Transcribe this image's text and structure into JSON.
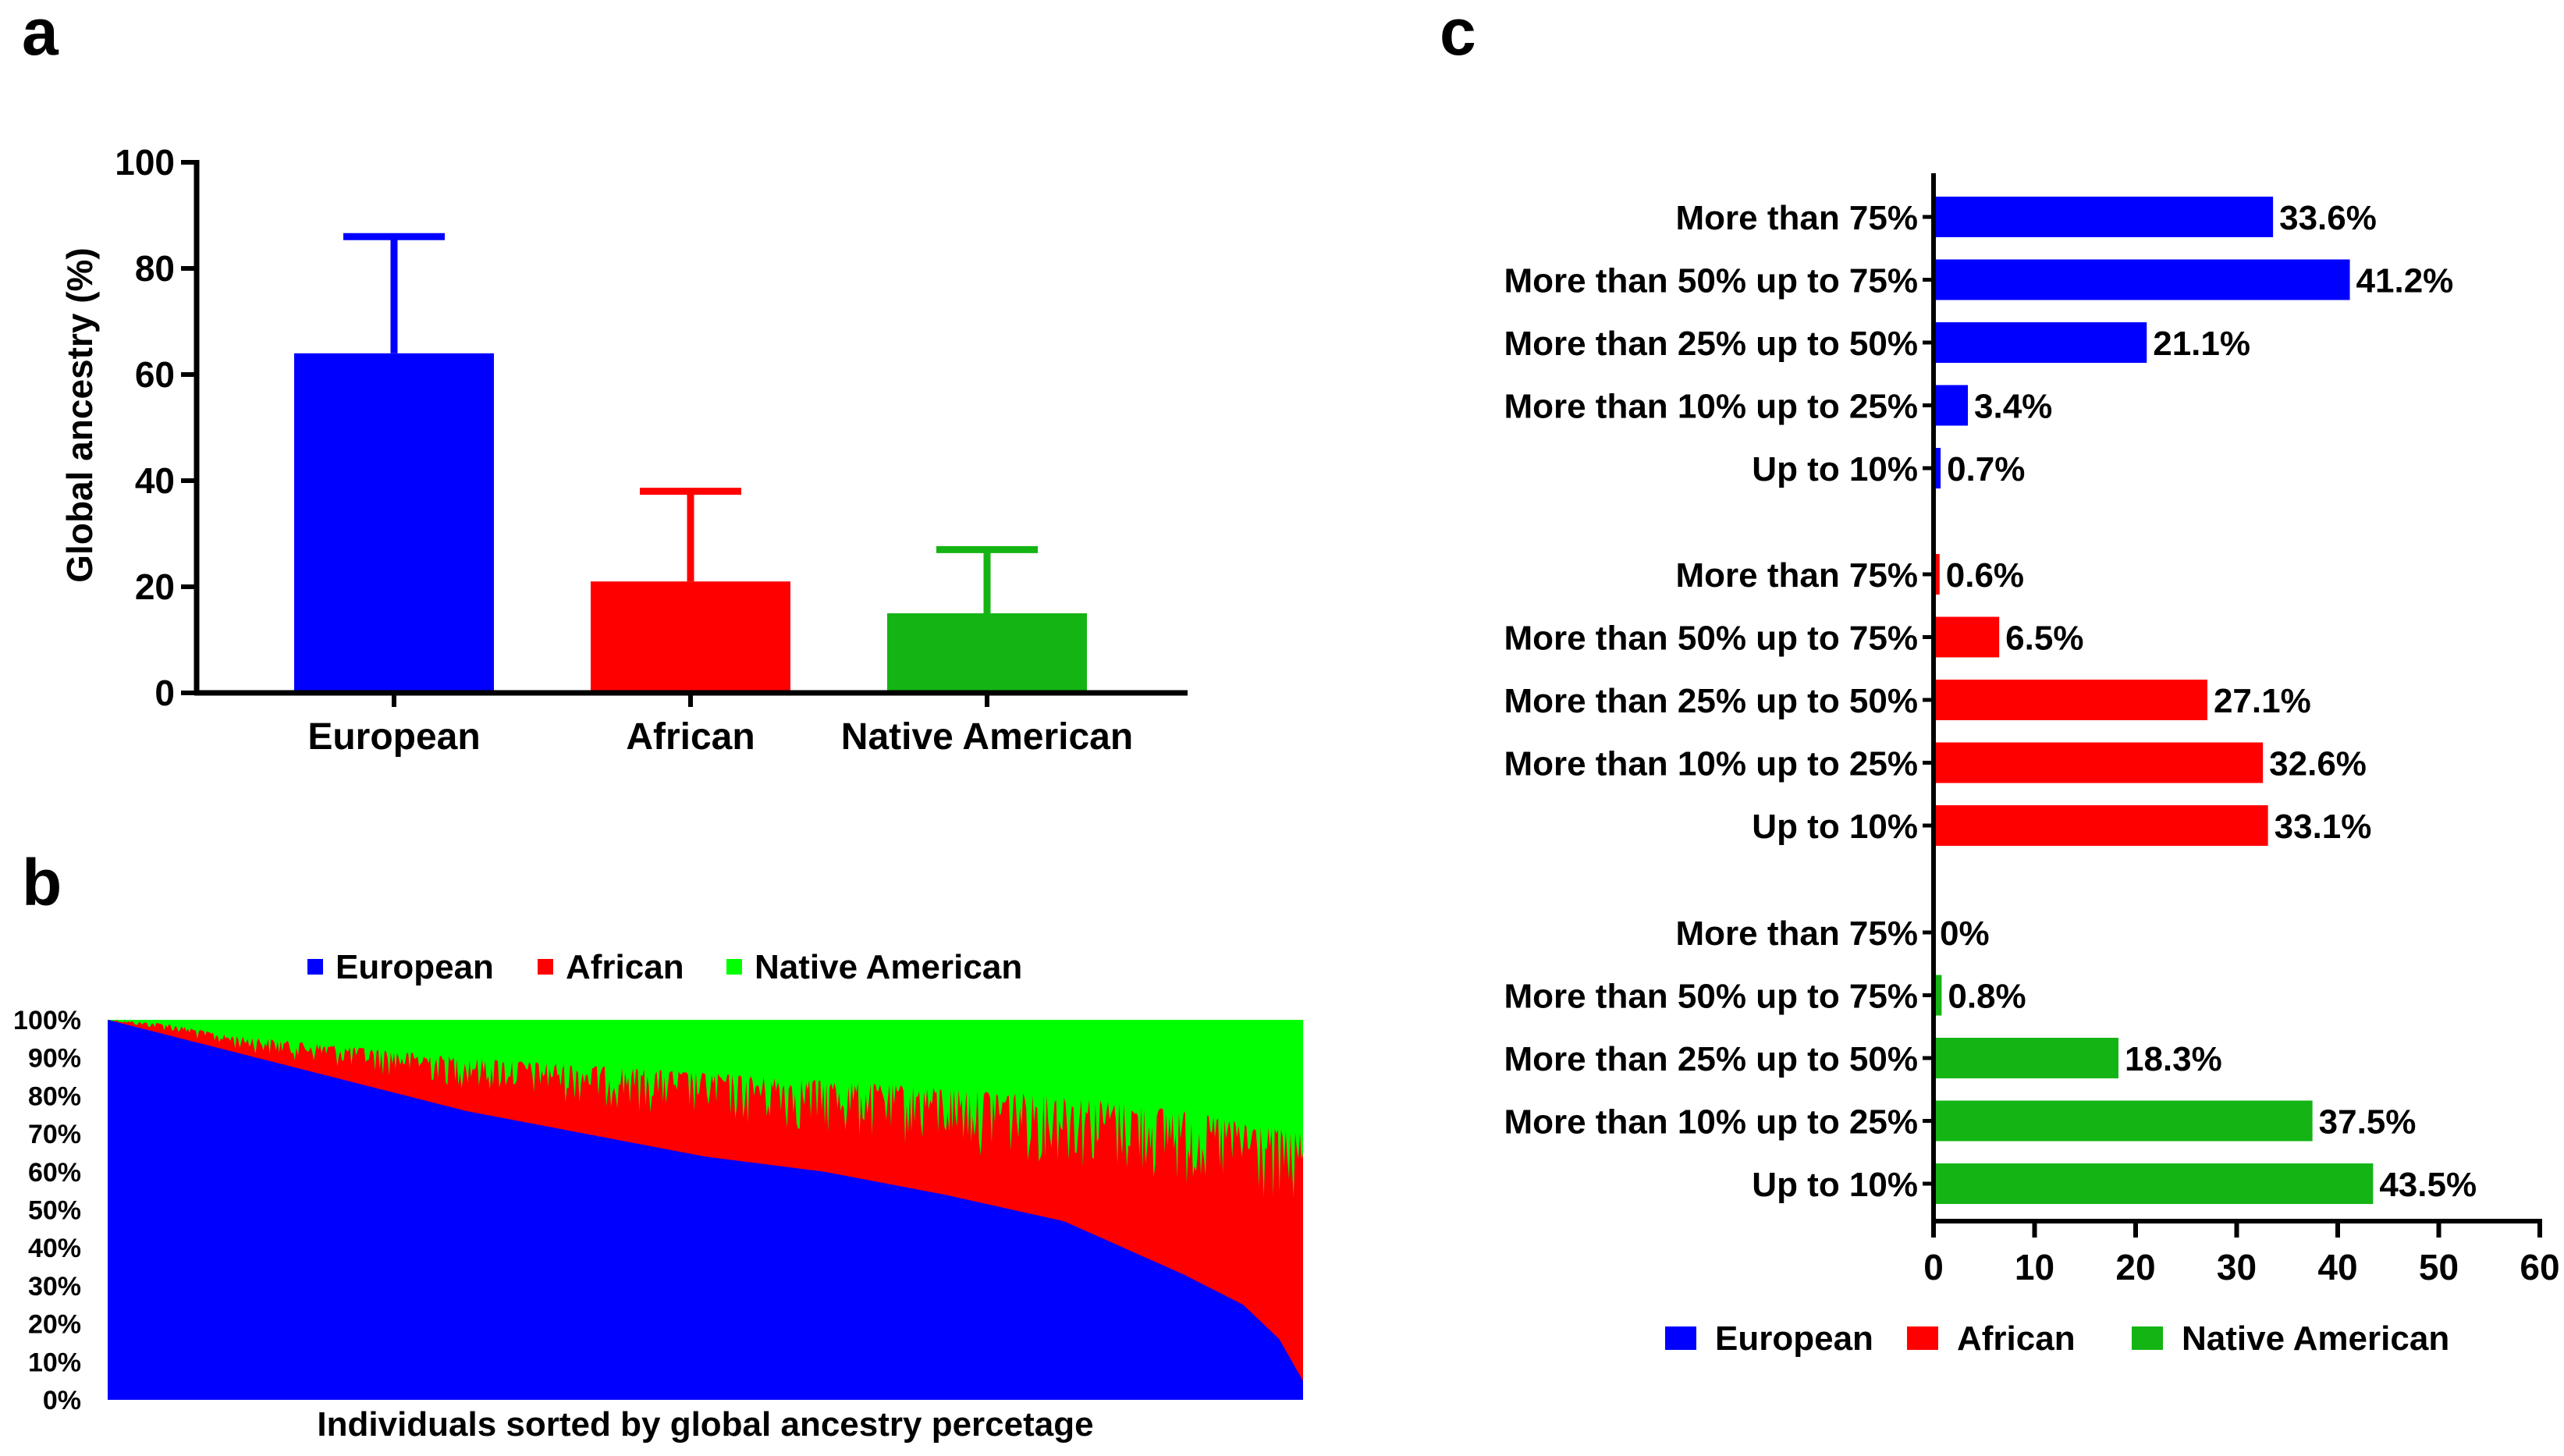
{
  "panel_labels": {
    "a": "a",
    "b": "b",
    "c": "c"
  },
  "colors": {
    "european": "#0000ff",
    "african": "#ff0000",
    "native_c": "#14b414",
    "native_b": "#00ff00",
    "axis": "#000000"
  },
  "chart_data": [
    {
      "id": "a",
      "type": "bar",
      "title": "",
      "xlabel": "",
      "ylabel": "Global ancestry (%)",
      "ylim": [
        0,
        100
      ],
      "yticks": [
        0,
        20,
        40,
        60,
        80,
        100
      ],
      "categories": [
        "European",
        "African",
        "Native American"
      ],
      "values": [
        64,
        21,
        15
      ],
      "error_upper": [
        86,
        38,
        27
      ],
      "bar_colors": [
        "#0000ff",
        "#ff0000",
        "#14b414"
      ]
    },
    {
      "id": "b",
      "type": "area",
      "title": "",
      "xlabel": "Individuals sorted by global ancestry percetage",
      "ylabel": "",
      "ylim": [
        0,
        100
      ],
      "yticks": [
        0,
        10,
        20,
        30,
        40,
        50,
        60,
        70,
        80,
        90,
        100
      ],
      "ytick_labels": [
        "0%",
        "10%",
        "20%",
        "30%",
        "40%",
        "50%",
        "60%",
        "70%",
        "80%",
        "90%",
        "100%"
      ],
      "legend_position": "top",
      "legend": [
        "European",
        "African",
        "Native American"
      ],
      "legend_colors": [
        "#0000ff",
        "#ff0000",
        "#00ff00"
      ],
      "series_european_profile": [
        [
          0,
          100
        ],
        [
          0.1,
          92
        ],
        [
          0.2,
          84
        ],
        [
          0.3,
          76
        ],
        [
          0.4,
          70
        ],
        [
          0.5,
          64
        ],
        [
          0.6,
          60
        ],
        [
          0.7,
          54
        ],
        [
          0.8,
          47
        ],
        [
          0.85,
          40
        ],
        [
          0.9,
          33
        ],
        [
          0.95,
          25
        ],
        [
          0.98,
          16
        ],
        [
          1.0,
          5
        ]
      ],
      "series_african_top_profile": [
        [
          0,
          100
        ],
        [
          0.05,
          99
        ],
        [
          0.1,
          96
        ],
        [
          0.2,
          93
        ],
        [
          0.3,
          90
        ],
        [
          0.4,
          88
        ],
        [
          0.5,
          86
        ],
        [
          0.6,
          84
        ],
        [
          0.7,
          82
        ],
        [
          0.8,
          80
        ],
        [
          0.9,
          76
        ],
        [
          1.0,
          70
        ]
      ]
    },
    {
      "id": "c",
      "type": "bar",
      "orientation": "horizontal",
      "title": "",
      "xlabel": "",
      "ylabel": "",
      "xlim": [
        0,
        60
      ],
      "xticks": [
        0,
        10,
        20,
        30,
        40,
        50,
        60
      ],
      "legend_position": "bottom",
      "legend": [
        "European",
        "African",
        "Native American"
      ],
      "legend_colors": [
        "#0000ff",
        "#ff0000",
        "#14b414"
      ],
      "categories": [
        "More than 75%",
        "More than 50% up to 75%",
        "More than 25% up to 50%",
        "More than 10% up to 25%",
        "Up to 10%"
      ],
      "series": [
        {
          "name": "European",
          "color": "#0000ff",
          "values": [
            33.6,
            41.2,
            21.1,
            3.4,
            0.7
          ],
          "labels": [
            "33.6%",
            "41.2%",
            "21.1%",
            "3.4%",
            "0.7%"
          ]
        },
        {
          "name": "African",
          "color": "#ff0000",
          "values": [
            0.6,
            6.5,
            27.1,
            32.6,
            33.1
          ],
          "labels": [
            "0.6%",
            "6.5%",
            "27.1%",
            "32.6%",
            "33.1%"
          ]
        },
        {
          "name": "Native American",
          "color": "#14b414",
          "values": [
            0,
            0.8,
            18.3,
            37.5,
            43.5
          ],
          "labels": [
            "0%",
            "0.8%",
            "18.3%",
            "37.5%",
            "43.5%"
          ]
        }
      ]
    }
  ]
}
